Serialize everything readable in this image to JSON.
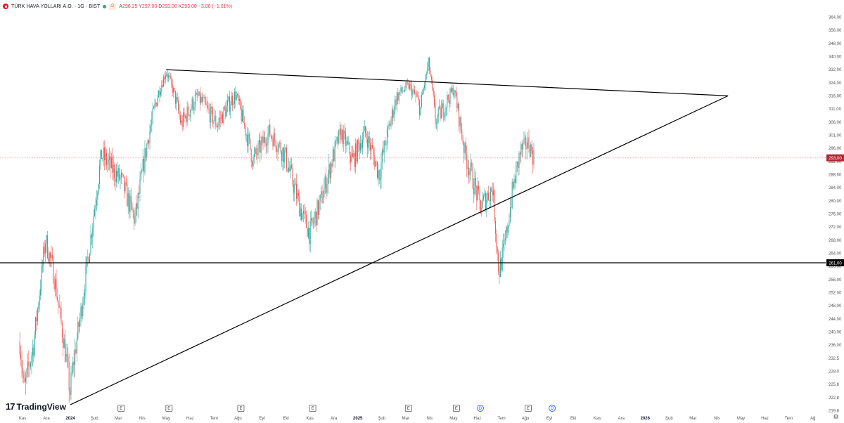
{
  "header": {
    "symbol_title": "TÜRK HAVA YOLLARI A.O. · 1G · BIST",
    "badge": "D",
    "open_label": "A",
    "open": "296,25",
    "high_label": "Y",
    "high": "297,00",
    "low_label": "D",
    "low": "293,00",
    "close_label": "K",
    "close": "293,00",
    "change": "−3,00 (−1,01%)"
  },
  "branding": {
    "logo_text": "TradingView"
  },
  "icons": {
    "settings": "gear-icon",
    "logo": "tradingview-logo-icon",
    "symbol": "thy-logo-icon"
  },
  "colors": {
    "up": "#26a69a",
    "down": "#ef5350",
    "last_price": "#b22833",
    "line": "#000000"
  },
  "chart_data": {
    "type": "candlestick",
    "title": "TÜRK HAVA YOLLARI A.O. · 1G · BIST",
    "ylim": [
      219.8,
      364.5
    ],
    "y_ticks": [
      "364,00",
      "356,00",
      "348,00",
      "340,00",
      "332,00",
      "324,00",
      "316,00",
      "311,00",
      "306,00",
      "301,00",
      "296,00",
      "292,00",
      "288,00",
      "284,00",
      "280,00",
      "276,00",
      "272,00",
      "268,00",
      "264,00",
      "260,00",
      "256,00",
      "252,00",
      "248,00",
      "244,00",
      "240,00",
      "236,00",
      "232,5",
      "229,0",
      "225,8",
      "222,8",
      "219,8"
    ],
    "x_ticks": [
      "Kas",
      "Ara",
      "2024",
      "Şub",
      "Mar",
      "Nis",
      "May",
      "Haz",
      "Tem",
      "Ağu",
      "Eyl",
      "Eki",
      "Kas",
      "Ara",
      "2025",
      "Şub",
      "Mar",
      "Nis",
      "May",
      "Haz",
      "Tem",
      "Ağu",
      "Eyl",
      "Eki",
      "Kas",
      "Ara",
      "2026",
      "Şub",
      "Mar",
      "Nis",
      "May",
      "Haz",
      "Tem",
      "Ağ"
    ],
    "bold_x_ticks": [
      "2024",
      "2025",
      "2026"
    ],
    "last_price": {
      "label": "293,00",
      "value": 293.0
    },
    "horizontal_line": {
      "label": "261,00",
      "value": 261.0
    },
    "trendlines": [
      {
        "name": "upper",
        "from": [
          "2024-05-01",
          331.8
        ],
        "to": [
          "2026-04-15",
          315.9
        ]
      },
      {
        "name": "lower",
        "from": [
          "2024-01-01",
          221.1
        ],
        "to": [
          "2026-04-15",
          315.9
        ]
      }
    ],
    "events": [
      {
        "type": "earnings",
        "label": "E",
        "date": "Mar 2024"
      },
      {
        "type": "earnings",
        "label": "E",
        "date": "May 2024"
      },
      {
        "type": "earnings",
        "label": "E",
        "date": "Ağu 2024"
      },
      {
        "type": "earnings",
        "label": "E",
        "date": "Kas 2024"
      },
      {
        "type": "earnings",
        "label": "E",
        "date": "Mar 2025"
      },
      {
        "type": "earnings",
        "label": "E",
        "date": "May 2025"
      },
      {
        "type": "dividend",
        "label": "D",
        "date": "Haz 2025"
      },
      {
        "type": "split",
        "label": "⚡",
        "date": "Ağu 2025"
      },
      {
        "type": "earnings",
        "label": "E",
        "date": "Ağu 2025"
      },
      {
        "type": "dividend",
        "label": "D",
        "date": "Eyl 2025"
      }
    ],
    "anchors": [
      [
        "2023-10-28",
        237.0
      ],
      [
        "2023-11-03",
        224.0
      ],
      [
        "2023-11-15",
        236.0
      ],
      [
        "2023-11-30",
        268.0
      ],
      [
        "2023-12-10",
        258.0
      ],
      [
        "2023-12-31",
        224.0
      ],
      [
        "2024-01-15",
        247.0
      ],
      [
        "2024-02-10",
        294.0
      ],
      [
        "2024-03-05",
        286.0
      ],
      [
        "2024-03-22",
        274.0
      ],
      [
        "2024-04-10",
        302.0
      ],
      [
        "2024-05-01",
        331.0
      ],
      [
        "2024-05-20",
        305.0
      ],
      [
        "2024-06-10",
        316.0
      ],
      [
        "2024-07-05",
        305.0
      ],
      [
        "2024-07-28",
        317.0
      ],
      [
        "2024-08-20",
        292.0
      ],
      [
        "2024-09-10",
        302.0
      ],
      [
        "2024-09-30",
        294.0
      ],
      [
        "2024-10-20",
        277.0
      ],
      [
        "2024-10-31",
        270.0
      ],
      [
        "2024-11-15",
        280.0
      ],
      [
        "2024-12-10",
        302.0
      ],
      [
        "2024-12-25",
        292.0
      ],
      [
        "2025-01-10",
        302.0
      ],
      [
        "2025-01-28",
        288.0
      ],
      [
        "2025-02-20",
        316.0
      ],
      [
        "2025-03-05",
        322.0
      ],
      [
        "2025-03-20",
        311.0
      ],
      [
        "2025-03-30",
        336.0
      ],
      [
        "2025-04-08",
        306.0
      ],
      [
        "2025-04-20",
        312.0
      ],
      [
        "2025-05-01",
        320.0
      ],
      [
        "2025-05-15",
        295.0
      ],
      [
        "2025-06-05",
        278.0
      ],
      [
        "2025-06-20",
        284.0
      ],
      [
        "2025-06-28",
        258.0
      ],
      [
        "2025-07-05",
        266.0
      ],
      [
        "2025-07-15",
        283.0
      ],
      [
        "2025-07-25",
        295.0
      ],
      [
        "2025-08-05",
        298.0
      ],
      [
        "2025-08-12",
        293.0
      ]
    ]
  }
}
